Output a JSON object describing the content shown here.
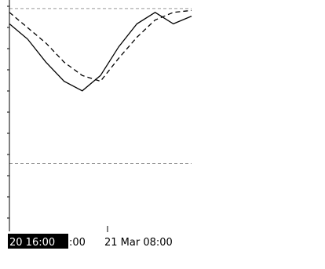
{
  "chart_data": {
    "type": "line",
    "title": "",
    "xlabel": "",
    "ylabel": "",
    "grid": true,
    "x_tick_labels": [
      "20 16:00",
      ":00",
      "21 Mar 08:00"
    ],
    "x_highlighted_label": "20 16:00",
    "y_range": [
      0,
      100
    ],
    "series": [
      {
        "style": "solid",
        "color": "#000000",
        "values": [
          90,
          82,
          70,
          60,
          55,
          63,
          78,
          90,
          96,
          90,
          94
        ]
      },
      {
        "style": "dashed",
        "color": "#000000",
        "values": [
          96,
          88,
          80,
          70,
          63,
          60,
          72,
          83,
          92,
          96,
          97
        ]
      }
    ],
    "reference_lines": {
      "style": "dashed",
      "color": "#999999",
      "values": [
        98,
        17
      ]
    }
  }
}
